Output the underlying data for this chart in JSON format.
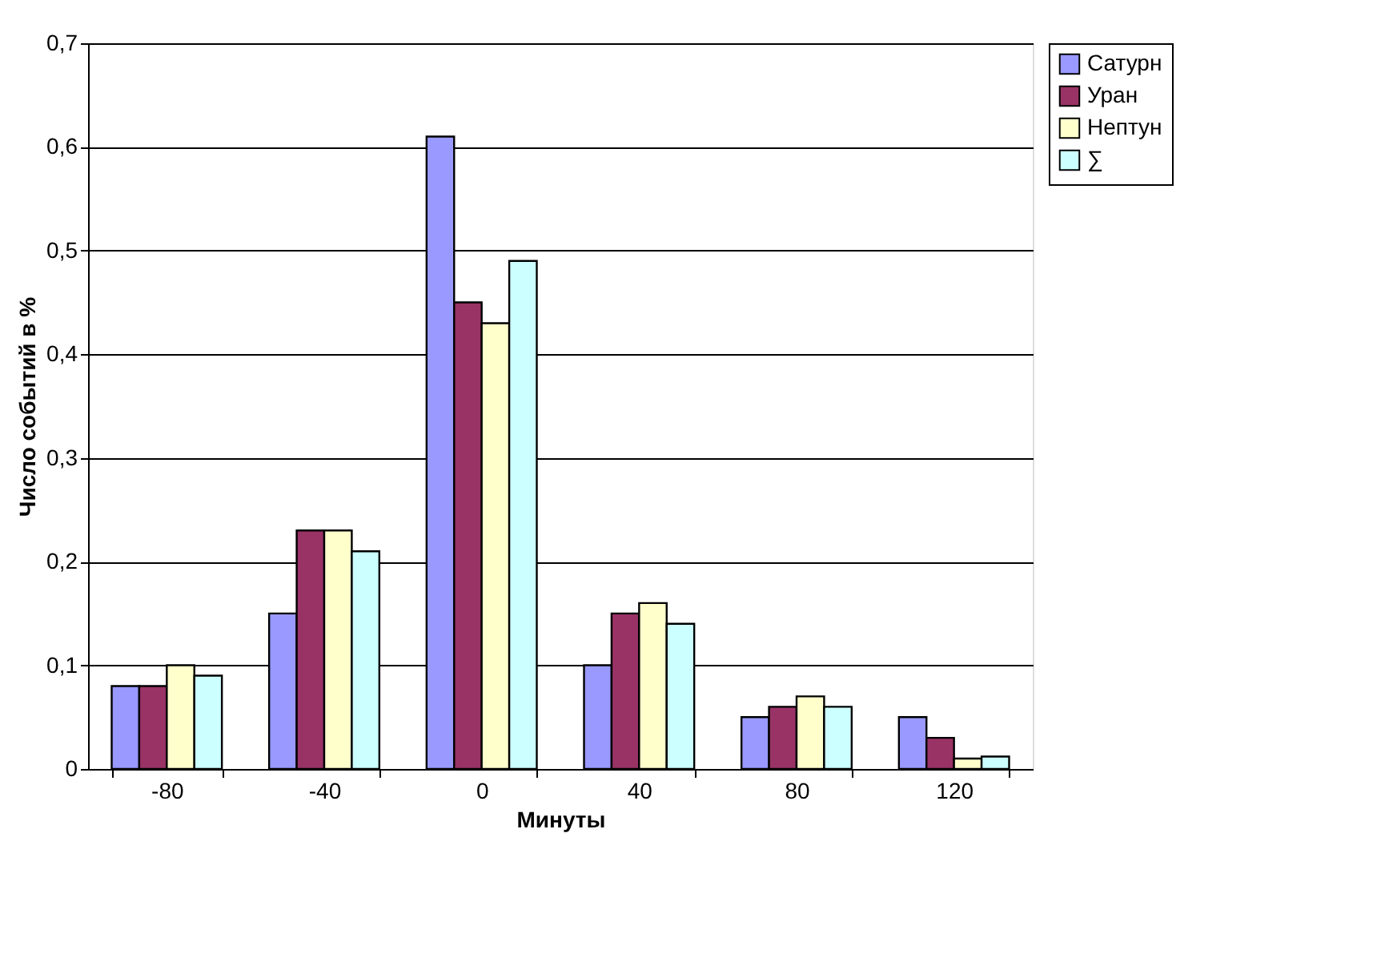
{
  "chart_data": {
    "type": "bar",
    "xlabel": "Минуты",
    "ylabel": "Число событий в %",
    "categories": [
      "-80",
      "-40",
      "0",
      "40",
      "80",
      "120"
    ],
    "series": [
      {
        "name": "Сатурн",
        "color": "#9999ff",
        "values": [
          0.08,
          0.15,
          0.61,
          0.1,
          0.05,
          0.05
        ]
      },
      {
        "name": "Уран",
        "color": "#993366",
        "values": [
          0.08,
          0.23,
          0.45,
          0.15,
          0.06,
          0.03
        ]
      },
      {
        "name": "Нептун",
        "color": "#ffffcc",
        "values": [
          0.1,
          0.23,
          0.43,
          0.16,
          0.07,
          0.01
        ]
      },
      {
        "name": "∑",
        "color": "#ccffff",
        "values": [
          0.09,
          0.21,
          0.49,
          0.14,
          0.06,
          0.012
        ]
      }
    ],
    "ylim": [
      0,
      0.7
    ],
    "yticks": [
      {
        "value": 0,
        "label": "0"
      },
      {
        "value": 0.1,
        "label": "0,1"
      },
      {
        "value": 0.2,
        "label": "0,2"
      },
      {
        "value": 0.3,
        "label": "0,3"
      },
      {
        "value": 0.4,
        "label": "0,4"
      },
      {
        "value": 0.5,
        "label": "0,5"
      },
      {
        "value": 0.6,
        "label": "0,6"
      },
      {
        "value": 0.7,
        "label": "0,7"
      }
    ],
    "grid": "y",
    "legend": "right"
  }
}
